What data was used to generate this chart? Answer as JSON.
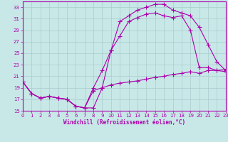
{
  "xlabel": "Windchill (Refroidissement éolien,°C)",
  "bg_color": "#c8e8e8",
  "line_color": "#aa00aa",
  "grid_color": "#aacccc",
  "xlim": [
    0,
    23
  ],
  "ylim": [
    15,
    34
  ],
  "xticks": [
    0,
    1,
    2,
    3,
    4,
    5,
    6,
    7,
    8,
    9,
    10,
    11,
    12,
    13,
    14,
    15,
    16,
    17,
    18,
    19,
    20,
    21,
    22,
    23
  ],
  "yticks": [
    15,
    17,
    19,
    21,
    23,
    25,
    27,
    29,
    31,
    33
  ],
  "curve1_x": [
    0,
    1,
    2,
    3,
    4,
    5,
    6,
    7,
    8,
    9,
    10,
    11,
    12,
    13,
    14,
    15,
    16,
    17,
    18,
    19,
    20,
    21,
    22,
    23
  ],
  "curve1_y": [
    20.0,
    18.0,
    17.2,
    17.5,
    17.2,
    17.0,
    15.8,
    15.5,
    15.5,
    19.0,
    25.5,
    30.5,
    31.5,
    32.5,
    33.0,
    33.5,
    33.5,
    32.5,
    32.0,
    31.5,
    29.5,
    26.5,
    23.5,
    22.0
  ],
  "curve2_x": [
    0,
    1,
    2,
    3,
    4,
    5,
    6,
    7,
    8,
    9,
    10,
    11,
    12,
    13,
    14,
    15,
    16,
    17,
    18,
    19,
    20,
    21,
    22,
    23
  ],
  "curve2_y": [
    20.0,
    18.0,
    17.2,
    17.5,
    17.2,
    17.0,
    15.8,
    15.5,
    19.0,
    22.0,
    25.5,
    28.0,
    30.5,
    31.2,
    31.8,
    32.0,
    31.5,
    31.2,
    31.5,
    29.0,
    22.5,
    22.5,
    22.0,
    21.8
  ],
  "curve3_x": [
    0,
    1,
    2,
    3,
    4,
    5,
    6,
    7,
    8,
    9,
    10,
    11,
    12,
    13,
    14,
    15,
    16,
    17,
    18,
    19,
    20,
    21,
    22,
    23
  ],
  "curve3_y": [
    20.0,
    18.0,
    17.2,
    17.5,
    17.2,
    17.0,
    15.8,
    15.5,
    18.5,
    19.0,
    19.5,
    19.8,
    20.0,
    20.2,
    20.5,
    20.8,
    21.0,
    21.3,
    21.5,
    21.8,
    21.5,
    22.0,
    22.0,
    22.2
  ]
}
